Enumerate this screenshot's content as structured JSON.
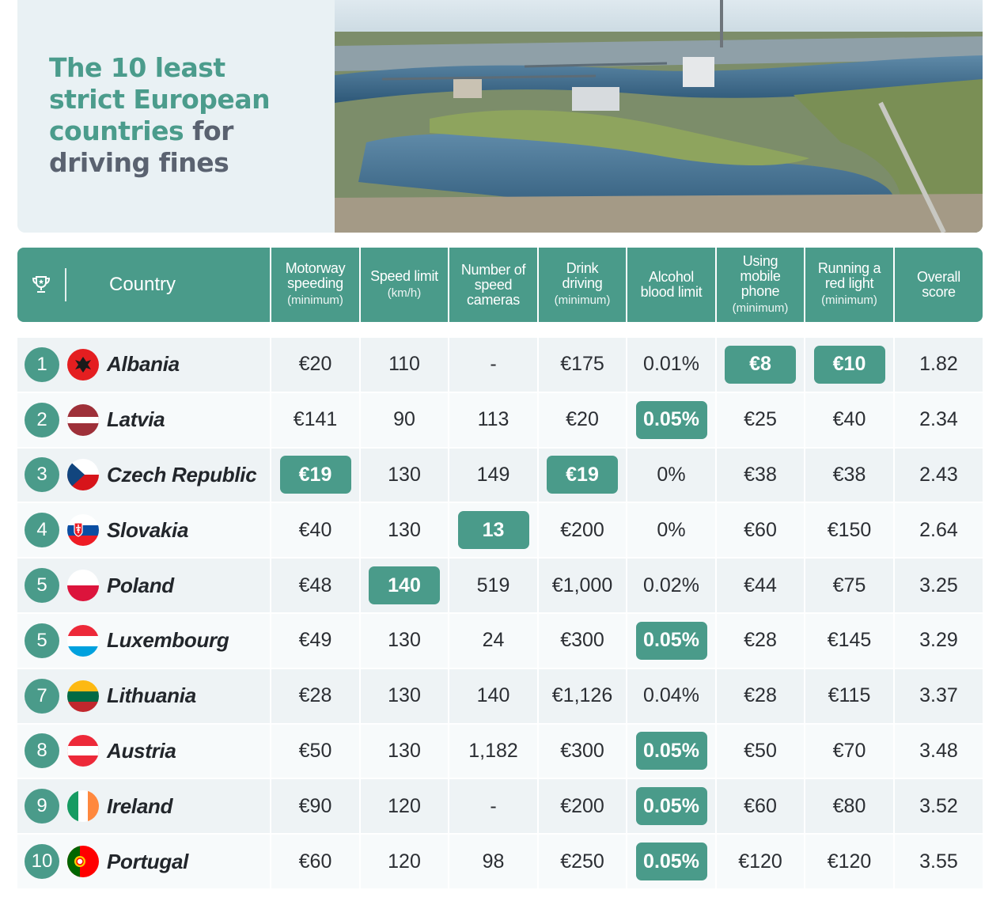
{
  "title": {
    "line1": "The 10 least",
    "line2": "strict European",
    "line3_teal": "countries",
    "line3_grey": " for",
    "line4": "driving fines"
  },
  "colors": {
    "accent": "#4a9b8a",
    "title_teal": "#4b9c8c",
    "title_grey": "#5a6270"
  },
  "icons": {
    "header": "trophy-icon"
  },
  "chart_data": {
    "type": "table",
    "title": "The 10 least strict European countries for driving fines",
    "columns": [
      {
        "key": "country",
        "label": "Country",
        "sub": ""
      },
      {
        "key": "speeding",
        "label": "Motorway\nspeeding",
        "sub": "(minimum)"
      },
      {
        "key": "speed_limit",
        "label": "Speed limit",
        "sub": "(km/h)"
      },
      {
        "key": "cameras",
        "label": "Number of\nspeed\ncameras",
        "sub": ""
      },
      {
        "key": "drink",
        "label": "Drink\ndriving",
        "sub": "(minimum)"
      },
      {
        "key": "alcohol",
        "label": "Alcohol\nblood limit",
        "sub": ""
      },
      {
        "key": "phone",
        "label": "Using\nmobile\nphone",
        "sub": "(minimum)"
      },
      {
        "key": "red_light",
        "label": "Running a\nred light",
        "sub": "(minimum)"
      },
      {
        "key": "score",
        "label": "Overall\nscore",
        "sub": ""
      }
    ],
    "rows": [
      {
        "rank": "1",
        "country": "Albania",
        "flag": "albania-flag-icon",
        "speeding": "€20",
        "speed_limit": "110",
        "cameras": "-",
        "drink": "€175",
        "alcohol": "0.01%",
        "phone": "€8",
        "red_light": "€10",
        "score": "1.82",
        "highlight": [
          "phone",
          "red_light"
        ]
      },
      {
        "rank": "2",
        "country": "Latvia",
        "flag": "latvia-flag-icon",
        "speeding": "€141",
        "speed_limit": "90",
        "cameras": "113",
        "drink": "€20",
        "alcohol": "0.05%",
        "phone": "€25",
        "red_light": "€40",
        "score": "2.34",
        "highlight": [
          "alcohol"
        ]
      },
      {
        "rank": "3",
        "country": "Czech Republic",
        "flag": "czech-flag-icon",
        "speeding": "€19",
        "speed_limit": "130",
        "cameras": "149",
        "drink": "€19",
        "alcohol": "0%",
        "phone": "€38",
        "red_light": "€38",
        "score": "2.43",
        "highlight": [
          "speeding",
          "drink"
        ]
      },
      {
        "rank": "4",
        "country": "Slovakia",
        "flag": "slovakia-flag-icon",
        "speeding": "€40",
        "speed_limit": "130",
        "cameras": "13",
        "drink": "€200",
        "alcohol": "0%",
        "phone": "€60",
        "red_light": "€150",
        "score": "2.64",
        "highlight": [
          "cameras"
        ]
      },
      {
        "rank": "5",
        "country": "Poland",
        "flag": "poland-flag-icon",
        "speeding": "€48",
        "speed_limit": "140",
        "cameras": "519",
        "drink": "€1,000",
        "alcohol": "0.02%",
        "phone": "€44",
        "red_light": "€75",
        "score": "3.25",
        "highlight": [
          "speed_limit"
        ]
      },
      {
        "rank": "5",
        "country": "Luxembourg",
        "flag": "luxembourg-flag-icon",
        "speeding": "€49",
        "speed_limit": "130",
        "cameras": "24",
        "drink": "€300",
        "alcohol": "0.05%",
        "phone": "€28",
        "red_light": "€145",
        "score": "3.29",
        "highlight": [
          "alcohol"
        ]
      },
      {
        "rank": "7",
        "country": "Lithuania",
        "flag": "lithuania-flag-icon",
        "speeding": "€28",
        "speed_limit": "130",
        "cameras": "140",
        "drink": "€1,126",
        "alcohol": "0.04%",
        "phone": "€28",
        "red_light": "€115",
        "score": "3.37",
        "highlight": []
      },
      {
        "rank": "8",
        "country": "Austria",
        "flag": "austria-flag-icon",
        "speeding": "€50",
        "speed_limit": "130",
        "cameras": "1,182",
        "drink": "€300",
        "alcohol": "0.05%",
        "phone": "€50",
        "red_light": "€70",
        "score": "3.48",
        "highlight": [
          "alcohol"
        ]
      },
      {
        "rank": "9",
        "country": "Ireland",
        "flag": "ireland-flag-icon",
        "speeding": "€90",
        "speed_limit": "120",
        "cameras": "-",
        "drink": "€200",
        "alcohol": "0.05%",
        "phone": "€60",
        "red_light": "€80",
        "score": "3.52",
        "highlight": [
          "alcohol"
        ]
      },
      {
        "rank": "10",
        "country": "Portugal",
        "flag": "portugal-flag-icon",
        "speeding": "€60",
        "speed_limit": "120",
        "cameras": "98",
        "drink": "€250",
        "alcohol": "0.05%",
        "phone": "€120",
        "red_light": "€120",
        "score": "3.55",
        "highlight": [
          "alcohol"
        ]
      }
    ]
  }
}
